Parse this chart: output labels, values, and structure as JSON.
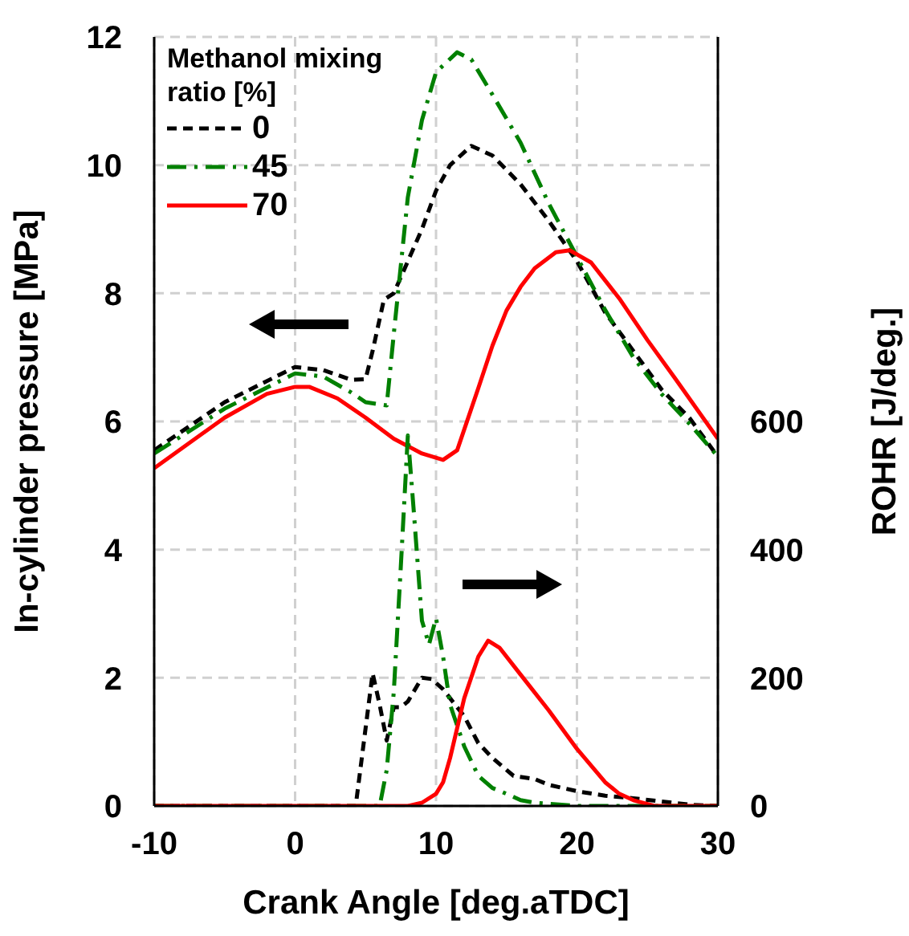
{
  "chart_data": {
    "type": "line",
    "xlabel": "Crank Angle [deg.aTDC]",
    "ylabel": "In-cylinder pressure [MPa]",
    "y2label": "ROHR [J/deg.]",
    "legend_title": "Methanol mixing ratio [%]",
    "xlim": [
      -10,
      30
    ],
    "xticks": [
      -10,
      0,
      10,
      20,
      30
    ],
    "ylim": [
      0,
      12
    ],
    "yticks": [
      0,
      2,
      4,
      6,
      8,
      10,
      12
    ],
    "y2lim": [
      0,
      1200
    ],
    "y2ticks": [
      0,
      200,
      400,
      600
    ],
    "grid": true,
    "legend": "top left",
    "marker": "none",
    "series": [
      {
        "name": "0",
        "color": "#000000",
        "line_style": "dashed",
        "x": [
          -10,
          -5,
          0,
          2,
          4,
          5,
          5.5,
          6.3,
          7,
          8,
          9,
          10,
          11,
          12.5,
          14,
          16,
          18,
          20,
          22,
          24,
          26,
          28,
          30
        ],
        "values": [
          5.55,
          6.3,
          6.85,
          6.8,
          6.65,
          6.66,
          7.1,
          7.9,
          8.0,
          8.5,
          9.0,
          9.6,
          10.0,
          10.3,
          10.15,
          9.7,
          9.13,
          8.5,
          7.7,
          7.1,
          6.5,
          6.05,
          5.45
        ]
      },
      {
        "name": "45",
        "color": "#008000",
        "line_style": "dashdot",
        "x": [
          -10,
          -5,
          0,
          2,
          4,
          5,
          6.5,
          7,
          8,
          9,
          10,
          11.5,
          12.5,
          14,
          16,
          18,
          20,
          22,
          24,
          26,
          28,
          30
        ],
        "values": [
          5.5,
          6.2,
          6.75,
          6.7,
          6.45,
          6.3,
          6.25,
          7.36,
          9.5,
          10.7,
          11.45,
          11.76,
          11.65,
          11.1,
          10.35,
          9.4,
          8.57,
          7.74,
          7.0,
          6.43,
          5.96,
          5.45
        ]
      },
      {
        "name": "70",
        "color": "#ff0000",
        "line_style": "solid",
        "x": [
          -10,
          -5,
          -2,
          0,
          1,
          3,
          5,
          7,
          9,
          10.5,
          11.5,
          13,
          14,
          15,
          16,
          17,
          18.5,
          19.5,
          21,
          23,
          25,
          27,
          30
        ],
        "values": [
          5.27,
          6.06,
          6.43,
          6.54,
          6.54,
          6.36,
          6.06,
          5.73,
          5.5,
          5.4,
          5.55,
          6.52,
          7.18,
          7.73,
          8.1,
          8.39,
          8.64,
          8.67,
          8.48,
          7.92,
          7.27,
          6.66,
          5.73
        ]
      },
      {
        "color": "#000000",
        "line_style": "dashed",
        "axis": "y2",
        "x": [
          -10,
          4.3,
          5,
          5.5,
          6,
          6.5,
          7,
          7.5,
          8,
          9,
          9.7,
          10.5,
          12,
          13,
          14,
          15.5,
          17,
          18,
          20,
          22,
          24,
          26,
          28,
          30
        ],
        "values": [
          0,
          0,
          121,
          207,
          158,
          102,
          154,
          154,
          163,
          200,
          198,
          182,
          140,
          98,
          75,
          47,
          42,
          33,
          23,
          16,
          12,
          7,
          2,
          0
        ]
      },
      {
        "color": "#008000",
        "line_style": "dashdot",
        "axis": "y2",
        "x": [
          -10,
          6,
          6.5,
          7,
          7.5,
          8,
          8.4,
          9,
          9.5,
          10,
          10.5,
          11,
          12,
          13,
          14,
          15,
          16,
          17,
          20,
          30
        ],
        "values": [
          0,
          0,
          56,
          177,
          373,
          578,
          466,
          289,
          252,
          293,
          233,
          158,
          93,
          47,
          28,
          19,
          9,
          5,
          0,
          0
        ]
      },
      {
        "color": "#ff0000",
        "line_style": "solid",
        "axis": "y2",
        "x": [
          -10,
          8,
          9,
          10,
          10.5,
          11,
          12,
          13,
          13.7,
          14.5,
          16,
          18,
          20,
          22,
          23,
          24,
          25.5,
          30
        ],
        "values": [
          0,
          0,
          5,
          19,
          37,
          75,
          168,
          233,
          258,
          247,
          205,
          149,
          89,
          37,
          19,
          9,
          0,
          0
        ]
      }
    ]
  }
}
